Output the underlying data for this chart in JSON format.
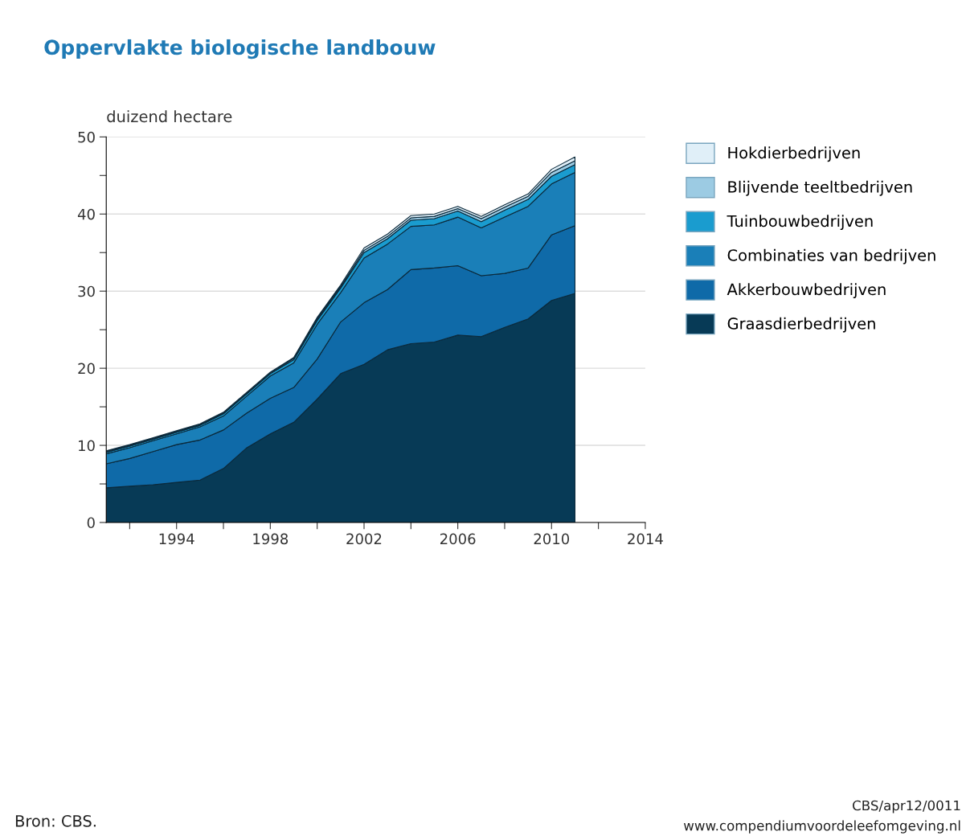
{
  "chart_data": {
    "type": "area",
    "stacked": true,
    "title": "Oppervlakte biologische landbouw",
    "ylabel": "duizend hectare",
    "x": [
      1991,
      1992,
      1993,
      1994,
      1995,
      1996,
      1997,
      1998,
      1999,
      2000,
      2001,
      2002,
      2003,
      2004,
      2005,
      2006,
      2007,
      2008,
      2009,
      2010,
      2011
    ],
    "series": [
      {
        "name": "Graasdierbedrijven",
        "color": "#073a56",
        "values": [
          4.5,
          4.7,
          4.9,
          5.2,
          5.5,
          7.0,
          9.7,
          11.5,
          13.0,
          16.0,
          19.3,
          20.5,
          22.4,
          23.2,
          23.4,
          24.3,
          24.1,
          25.3,
          26.4,
          28.8,
          29.7
        ]
      },
      {
        "name": "Akkerbouwbedrijven",
        "color": "#0f6aa8",
        "values": [
          3.1,
          3.6,
          4.3,
          4.9,
          5.2,
          5.0,
          4.5,
          4.6,
          4.5,
          5.2,
          6.7,
          8.0,
          7.8,
          9.6,
          9.6,
          9.0,
          7.9,
          7.0,
          6.6,
          8.5,
          8.8
        ]
      },
      {
        "name": "Combinaties van bedrijven",
        "color": "#1a7fb8",
        "values": [
          1.3,
          1.4,
          1.4,
          1.4,
          1.7,
          1.8,
          2.2,
          2.9,
          3.2,
          4.5,
          3.8,
          5.8,
          5.9,
          5.6,
          5.6,
          6.3,
          6.2,
          7.3,
          8.0,
          6.6,
          6.9
        ]
      },
      {
        "name": "Tuinbouwbedrijven",
        "color": "#1a9ccf",
        "values": [
          0.2,
          0.2,
          0.2,
          0.2,
          0.2,
          0.3,
          0.3,
          0.3,
          0.4,
          0.5,
          0.6,
          0.7,
          0.7,
          0.8,
          0.8,
          0.8,
          0.8,
          0.9,
          0.9,
          1.0,
          1.0
        ]
      },
      {
        "name": "Blijvende teeltbedrijven",
        "color": "#9ccbe3",
        "values": [
          0.1,
          0.1,
          0.1,
          0.1,
          0.1,
          0.1,
          0.1,
          0.1,
          0.2,
          0.2,
          0.2,
          0.3,
          0.3,
          0.3,
          0.3,
          0.3,
          0.4,
          0.4,
          0.4,
          0.5,
          0.5
        ]
      },
      {
        "name": "Hokdierbedrijven",
        "color": "#e0eff8",
        "values": [
          0.1,
          0.1,
          0.1,
          0.1,
          0.1,
          0.1,
          0.1,
          0.1,
          0.1,
          0.2,
          0.2,
          0.3,
          0.3,
          0.3,
          0.3,
          0.3,
          0.3,
          0.3,
          0.3,
          0.4,
          0.5
        ]
      }
    ],
    "xlim": [
      1991,
      2014
    ],
    "xticks": [
      {
        "value": 1992,
        "label": null
      },
      1994,
      {
        "value": 1996,
        "label": null
      },
      1998,
      {
        "value": 2000,
        "label": null
      },
      2002,
      {
        "value": 2004,
        "label": null
      },
      2006,
      {
        "value": 2008,
        "label": null
      },
      2010,
      {
        "value": 2012,
        "label": null
      },
      2014
    ],
    "ylim": [
      0,
      50
    ],
    "yticks": [
      0,
      {
        "value": 5,
        "label": null
      },
      10,
      {
        "value": 15,
        "label": null
      },
      20,
      {
        "value": 25,
        "label": null
      },
      30,
      {
        "value": 35,
        "label": null
      },
      40,
      {
        "value": 45,
        "label": null
      },
      50
    ],
    "grid": "y",
    "legend": "right",
    "annotations": [
      "Bron: CBS.",
      "CBS/apr12/0011",
      "www.compendiumvoordeleefomgeving.nl"
    ]
  }
}
